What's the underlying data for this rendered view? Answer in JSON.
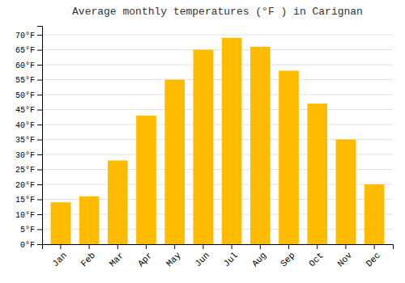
{
  "chart_data": {
    "type": "bar",
    "title": "Average monthly temperatures (°F ) in Carignan",
    "categories": [
      "Jan",
      "Feb",
      "Mar",
      "Apr",
      "May",
      "Jun",
      "Jul",
      "Aug",
      "Sep",
      "Oct",
      "Nov",
      "Dec"
    ],
    "values": [
      14,
      16,
      28,
      43,
      55,
      65,
      69,
      66,
      58,
      47,
      35,
      20
    ],
    "color": "#FFBB00",
    "ylim": [
      0,
      73
    ],
    "yticks": [
      {
        "value": 0,
        "label": "0°F"
      },
      {
        "value": 5,
        "label": "5°F"
      },
      {
        "value": 10,
        "label": "10°F"
      },
      {
        "value": 15,
        "label": "15°F"
      },
      {
        "value": 20,
        "label": "20°F"
      },
      {
        "value": 25,
        "label": "25°F"
      },
      {
        "value": 30,
        "label": "30°F"
      },
      {
        "value": 35,
        "label": "35°F"
      },
      {
        "value": 40,
        "label": "40°F"
      },
      {
        "value": 45,
        "label": "45°F"
      },
      {
        "value": 50,
        "label": "50°F"
      },
      {
        "value": 55,
        "label": "55°F"
      },
      {
        "value": 60,
        "label": "60°F"
      },
      {
        "value": 65,
        "label": "65°F"
      },
      {
        "value": 70,
        "label": "70°F"
      }
    ],
    "grid": true
  }
}
